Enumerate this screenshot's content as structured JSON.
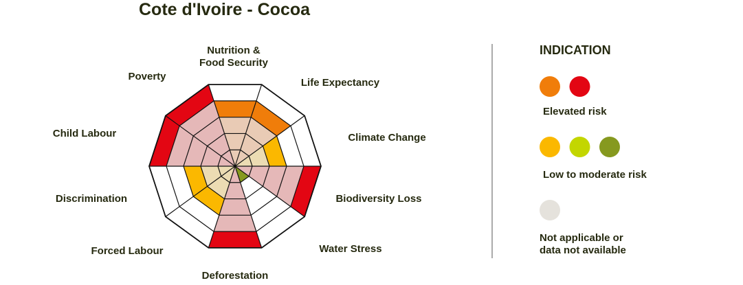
{
  "chart_data": {
    "type": "radar-segment",
    "title": "Cote d'Ivoire - Cocoa",
    "categories": [
      "Nutrition &\nFood Security",
      "Life Expectancy",
      "Climate Change",
      "Biodiversity Loss",
      "Water Stress",
      "Deforestation",
      "Forced Labour",
      "Discrimination",
      "Child Labour",
      "Poverty"
    ],
    "values": [
      4,
      4,
      3,
      5,
      1,
      5,
      3,
      3,
      5,
      5
    ],
    "colors": [
      "#f07d0a",
      "#f07d0a",
      "#fbb800",
      "#e30613",
      "#86991f",
      "#e30613",
      "#fbb800",
      "#fbb800",
      "#e30613",
      "#e30613"
    ],
    "tints": [
      "#e9cbb5",
      "#e9cbb5",
      "#ecdcb3",
      "#e5b8b8",
      "#d6dcb6",
      "#e5b8b8",
      "#ecdcb3",
      "#ecdcb3",
      "#e5b8b8",
      "#e5b8b8"
    ],
    "ylim": [
      0,
      5
    ],
    "yticks": [
      1,
      2,
      3,
      4,
      5
    ],
    "grid": true,
    "legend_title": "INDICATION",
    "legend": [
      {
        "label": "Elevated risk",
        "colors": [
          "#f07d0a",
          "#e30613"
        ]
      },
      {
        "label": "Low to moderate risk",
        "colors": [
          "#fbb800",
          "#c3d600",
          "#86991f"
        ]
      },
      {
        "label": "Not applicable or\ndata not available",
        "colors": [
          "#e5e2dc"
        ]
      }
    ]
  }
}
